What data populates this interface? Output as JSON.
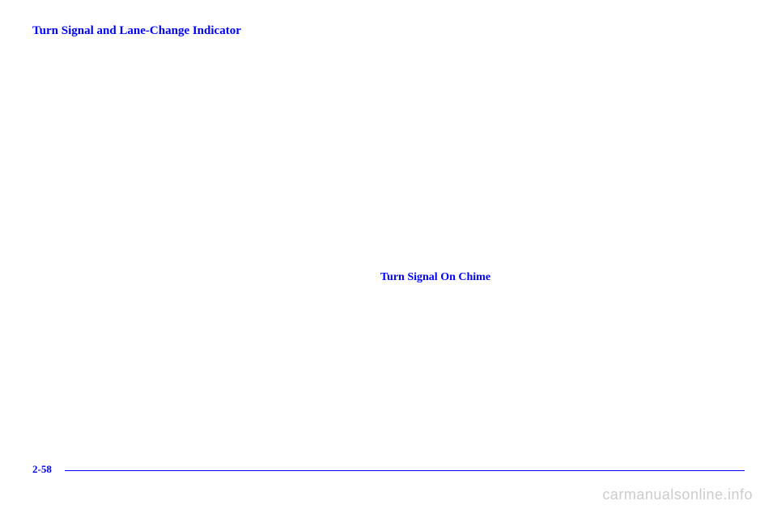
{
  "headings": {
    "main": "Turn Signal and Lane-Change Indicator",
    "sub": "Turn Signal On Chime"
  },
  "pageNumber": "2-58",
  "watermark": "carmanualsonline.info",
  "colors": {
    "link": "#0000ff",
    "watermark": "#cccccc",
    "background": "#ffffff"
  }
}
